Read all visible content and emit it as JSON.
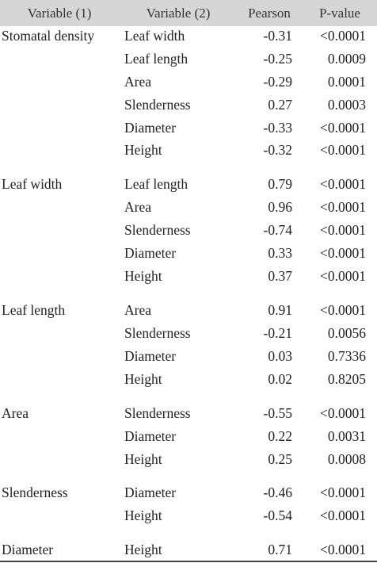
{
  "headers": {
    "var1": "Variable (1)",
    "var2": "Variable (2)",
    "pearson": "Pearson",
    "pvalue": "P-value"
  },
  "rows": [
    {
      "var1": "Stomatal density",
      "var2": "Leaf width",
      "pearson": "-0.31",
      "pvalue": "<0.0001"
    },
    {
      "var1": "",
      "var2": "Leaf length",
      "pearson": "-0.25",
      "pvalue": "0.0009"
    },
    {
      "var1": "",
      "var2": "Area",
      "pearson": "-0.29",
      "pvalue": "0.0001"
    },
    {
      "var1": "",
      "var2": "Slenderness",
      "pearson": "0.27",
      "pvalue": "0.0003"
    },
    {
      "var1": "",
      "var2": "Diameter",
      "pearson": "-0.33",
      "pvalue": "<0.0001"
    },
    {
      "var1": "",
      "var2": "Height",
      "pearson": "-0.32",
      "pvalue": "<0.0001"
    },
    {
      "var1": "Leaf width",
      "var2": "Leaf length",
      "pearson": "0.79",
      "pvalue": "<0.0001"
    },
    {
      "var1": "",
      "var2": "Area",
      "pearson": "0.96",
      "pvalue": "<0.0001"
    },
    {
      "var1": "",
      "var2": "Slenderness",
      "pearson": "-0.74",
      "pvalue": "<0.0001"
    },
    {
      "var1": "",
      "var2": "Diameter",
      "pearson": "0.33",
      "pvalue": "<0.0001"
    },
    {
      "var1": "",
      "var2": "Height",
      "pearson": "0.37",
      "pvalue": "<0.0001"
    },
    {
      "var1": "Leaf length",
      "var2": "Area",
      "pearson": "0.91",
      "pvalue": "<0.0001"
    },
    {
      "var1": "",
      "var2": "Slenderness",
      "pearson": "-0.21",
      "pvalue": "0.0056"
    },
    {
      "var1": "",
      "var2": "Diameter",
      "pearson": "0.03",
      "pvalue": "0.7336"
    },
    {
      "var1": "",
      "var2": "Height",
      "pearson": "0.02",
      "pvalue": "0.8205"
    },
    {
      "var1": "Area",
      "var2": "Slenderness",
      "pearson": "-0.55",
      "pvalue": "<0.0001"
    },
    {
      "var1": "",
      "var2": "Diameter",
      "pearson": "0.22",
      "pvalue": "0.0031"
    },
    {
      "var1": "",
      "var2": "Height",
      "pearson": "0.25",
      "pvalue": "0.0008"
    },
    {
      "var1": "Slenderness",
      "var2": "Diameter",
      "pearson": "-0.46",
      "pvalue": "<0.0001"
    },
    {
      "var1": "",
      "var2": "Height",
      "pearson": "-0.54",
      "pvalue": "<0.0001"
    },
    {
      "var1": "Diameter",
      "var2": "Height",
      "pearson": "0.71",
      "pvalue": "<0.0001"
    }
  ]
}
